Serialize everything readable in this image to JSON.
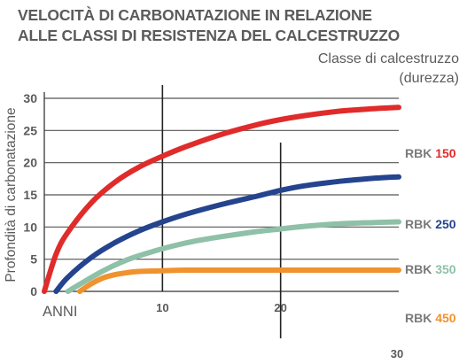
{
  "title_line1": "VELOCITÀ DI CARBONATAZIONE IN RELAZIONE",
  "title_line2": "ALLE CLASSI DI RESISTENZA DEL CALCESTRUZZO",
  "legend_title_line1": "Classe di calcestruzzo",
  "legend_title_line2": "(durezza)",
  "colors": {
    "red": "#e02b2b",
    "blue": "#24448e",
    "green": "#8fc0a8",
    "orange": "#f0922e",
    "text": "#5b5b5b",
    "grid": "#555555"
  },
  "legend": [
    {
      "prefix": "RBK",
      "value": "150",
      "color": "#e02b2b"
    },
    {
      "prefix": "RBK",
      "value": "250",
      "color": "#24448e"
    },
    {
      "prefix": "RBK",
      "value": "350",
      "color": "#8fc0a8"
    },
    {
      "prefix": "RBK",
      "value": "450",
      "color": "#f0922e"
    }
  ],
  "chart_data": {
    "type": "line",
    "title": "VELOCITÀ DI CARBONATAZIONE IN RELAZIONE ALLE CLASSI DI RESISTENZA DEL CALCESTRUZZO",
    "xlabel": "ANNI",
    "ylabel": "Profondità di carbonatazione",
    "xlim": [
      0,
      30
    ],
    "ylim": [
      0,
      30
    ],
    "x_ticks": [
      "10",
      "20",
      "30"
    ],
    "y_ticks": [
      "0",
      "5",
      "10",
      "15",
      "20",
      "25",
      "30"
    ],
    "grid": true,
    "legend_position": "right",
    "series": [
      {
        "name": "RBK 150",
        "color": "#e02b2b",
        "x": [
          0,
          1,
          2,
          4,
          6,
          8,
          10,
          12,
          15,
          18,
          20,
          22,
          25,
          28,
          30
        ],
        "y": [
          0,
          5.8,
          9.2,
          13.8,
          17,
          19.3,
          21,
          22.5,
          24.4,
          25.9,
          26.7,
          27.3,
          28,
          28.4,
          28.6
        ]
      },
      {
        "name": "RBK 250",
        "color": "#24448e",
        "x": [
          1,
          2,
          4,
          6,
          8,
          10,
          12,
          15,
          18,
          20,
          22,
          25,
          28,
          30
        ],
        "y": [
          0,
          2.2,
          5.3,
          7.6,
          9.4,
          10.8,
          12,
          13.5,
          14.8,
          15.7,
          16.4,
          17.1,
          17.6,
          17.8
        ]
      },
      {
        "name": "RBK 350",
        "color": "#8fc0a8",
        "x": [
          2,
          3,
          5,
          7,
          9,
          11,
          13,
          15,
          18,
          20,
          22,
          25,
          28,
          30
        ],
        "y": [
          0,
          1.1,
          3.2,
          4.9,
          6.1,
          7.1,
          7.9,
          8.5,
          9.3,
          9.7,
          10.1,
          10.5,
          10.7,
          10.8
        ]
      },
      {
        "name": "RBK 450",
        "color": "#f0922e",
        "x": [
          3,
          4,
          5,
          6,
          7,
          8,
          10,
          12,
          15,
          20,
          25,
          30
        ],
        "y": [
          0,
          1.2,
          2.1,
          2.6,
          2.9,
          3.1,
          3.2,
          3.3,
          3.3,
          3.3,
          3.3,
          3.3
        ]
      }
    ]
  }
}
